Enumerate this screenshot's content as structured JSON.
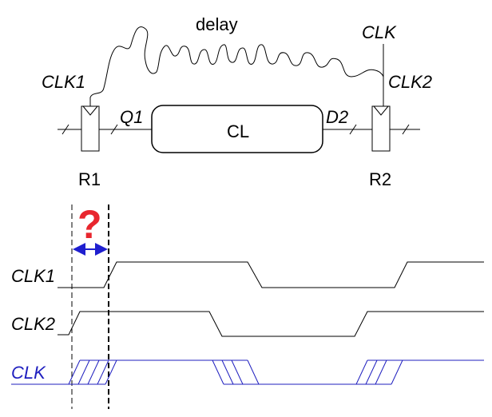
{
  "labels": {
    "delay": "delay",
    "clk_source": "CLK",
    "clk1": "CLK1",
    "clk2": "CLK2",
    "q1": "Q1",
    "d2": "D2",
    "cl": "CL",
    "r1": "R1",
    "r2": "R2",
    "question": "?"
  },
  "waveforms": [
    {
      "name": "CLK1",
      "color": "#000000"
    },
    {
      "name": "CLK2",
      "color": "#000000"
    },
    {
      "name": "CLK",
      "color": "#1f1fbf"
    }
  ],
  "colors": {
    "line": "#000000",
    "clock_blue": "#1f1fbf",
    "question_red": "#e8262e",
    "arrow_blue": "#1f1fcf"
  }
}
